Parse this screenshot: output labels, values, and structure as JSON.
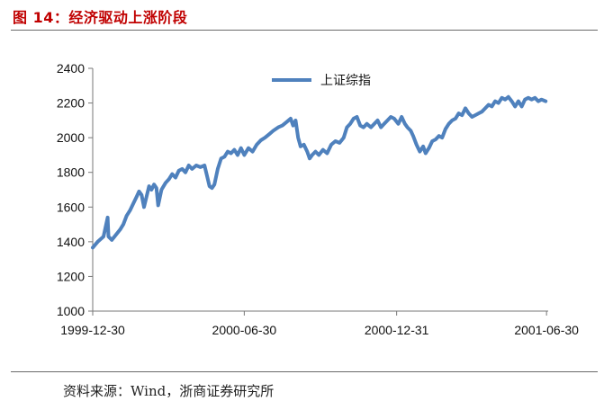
{
  "figure": {
    "title": "图 14：经济驱动上涨阶段",
    "source": "资料来源：Wind，浙商证券研究所"
  },
  "chart_data": {
    "type": "line",
    "title": "",
    "xlabel": "",
    "ylabel": "",
    "ylim": [
      1000,
      2400
    ],
    "yticks": [
      1000,
      1200,
      1400,
      1600,
      1800,
      2000,
      2200,
      2400
    ],
    "xlim": [
      "1999-12-30",
      "2001-07-02"
    ],
    "xticks": [
      "1999-12-30",
      "2000-06-30",
      "2000-12-31",
      "2001-06-30"
    ],
    "grid": false,
    "legend_position": "top-center",
    "series": [
      {
        "name": "上证综指",
        "color": "#4f81bd",
        "points": [
          [
            "1999-12-30",
            1366
          ],
          [
            "2000-01-05",
            1400
          ],
          [
            "2000-01-12",
            1430
          ],
          [
            "2000-01-17",
            1540
          ],
          [
            "2000-01-18",
            1430
          ],
          [
            "2000-01-22",
            1410
          ],
          [
            "2000-01-27",
            1440
          ],
          [
            "2000-02-01",
            1470
          ],
          [
            "2000-02-05",
            1500
          ],
          [
            "2000-02-09",
            1550
          ],
          [
            "2000-02-13",
            1580
          ],
          [
            "2000-02-17",
            1620
          ],
          [
            "2000-02-21",
            1660
          ],
          [
            "2000-02-24",
            1690
          ],
          [
            "2000-02-27",
            1670
          ],
          [
            "2000-03-01",
            1600
          ],
          [
            "2000-03-04",
            1660
          ],
          [
            "2000-03-07",
            1720
          ],
          [
            "2000-03-10",
            1700
          ],
          [
            "2000-03-13",
            1730
          ],
          [
            "2000-03-16",
            1710
          ],
          [
            "2000-03-18",
            1610
          ],
          [
            "2000-03-22",
            1700
          ],
          [
            "2000-03-27",
            1740
          ],
          [
            "2000-03-31",
            1760
          ],
          [
            "2000-04-04",
            1790
          ],
          [
            "2000-04-08",
            1770
          ],
          [
            "2000-04-12",
            1810
          ],
          [
            "2000-04-16",
            1820
          ],
          [
            "2000-04-20",
            1800
          ],
          [
            "2000-04-24",
            1840
          ],
          [
            "2000-04-28",
            1820
          ],
          [
            "2000-05-03",
            1840
          ],
          [
            "2000-05-08",
            1830
          ],
          [
            "2000-05-13",
            1840
          ],
          [
            "2000-05-16",
            1780
          ],
          [
            "2000-05-19",
            1720
          ],
          [
            "2000-05-22",
            1710
          ],
          [
            "2000-05-25",
            1730
          ],
          [
            "2000-05-29",
            1820
          ],
          [
            "2000-06-02",
            1880
          ],
          [
            "2000-06-06",
            1890
          ],
          [
            "2000-06-10",
            1920
          ],
          [
            "2000-06-14",
            1910
          ],
          [
            "2000-06-18",
            1930
          ],
          [
            "2000-06-22",
            1900
          ],
          [
            "2000-06-26",
            1940
          ],
          [
            "2000-06-30",
            1900
          ],
          [
            "2000-07-05",
            1940
          ],
          [
            "2000-07-10",
            1920
          ],
          [
            "2000-07-15",
            1960
          ],
          [
            "2000-07-20",
            1985
          ],
          [
            "2000-07-25",
            2000
          ],
          [
            "2000-07-30",
            2020
          ],
          [
            "2000-08-04",
            2040
          ],
          [
            "2000-08-10",
            2060
          ],
          [
            "2000-08-15",
            2070
          ],
          [
            "2000-08-20",
            2090
          ],
          [
            "2000-08-25",
            2110
          ],
          [
            "2000-08-28",
            2070
          ],
          [
            "2000-08-31",
            2100
          ],
          [
            "2000-09-03",
            2000
          ],
          [
            "2000-09-06",
            1950
          ],
          [
            "2000-09-10",
            1960
          ],
          [
            "2000-09-14",
            1920
          ],
          [
            "2000-09-17",
            1880
          ],
          [
            "2000-09-20",
            1900
          ],
          [
            "2000-09-24",
            1920
          ],
          [
            "2000-09-28",
            1900
          ],
          [
            "2000-10-03",
            1930
          ],
          [
            "2000-10-08",
            1910
          ],
          [
            "2000-10-13",
            1960
          ],
          [
            "2000-10-18",
            1980
          ],
          [
            "2000-10-23",
            1970
          ],
          [
            "2000-10-28",
            2000
          ],
          [
            "2000-11-01",
            2060
          ],
          [
            "2000-11-05",
            2080
          ],
          [
            "2000-11-09",
            2110
          ],
          [
            "2000-11-13",
            2120
          ],
          [
            "2000-11-17",
            2070
          ],
          [
            "2000-11-21",
            2060
          ],
          [
            "2000-11-25",
            2080
          ],
          [
            "2000-11-30",
            2060
          ],
          [
            "2000-12-04",
            2080
          ],
          [
            "2000-12-08",
            2100
          ],
          [
            "2000-12-12",
            2060
          ],
          [
            "2000-12-16",
            2080
          ],
          [
            "2000-12-20",
            2100
          ],
          [
            "2000-12-24",
            2120
          ],
          [
            "2000-12-28",
            2110
          ],
          [
            "2001-01-02",
            2080
          ],
          [
            "2001-01-06",
            2120
          ],
          [
            "2001-01-10",
            2080
          ],
          [
            "2001-01-13",
            2060
          ],
          [
            "2001-01-17",
            2040
          ],
          [
            "2001-01-20",
            2010
          ],
          [
            "2001-01-24",
            1960
          ],
          [
            "2001-01-28",
            1920
          ],
          [
            "2001-02-01",
            1950
          ],
          [
            "2001-02-04",
            1910
          ],
          [
            "2001-02-08",
            1940
          ],
          [
            "2001-02-12",
            1980
          ],
          [
            "2001-02-16",
            1990
          ],
          [
            "2001-02-20",
            2010
          ],
          [
            "2001-02-24",
            2000
          ],
          [
            "2001-02-28",
            2050
          ],
          [
            "2001-03-04",
            2080
          ],
          [
            "2001-03-08",
            2100
          ],
          [
            "2001-03-12",
            2110
          ],
          [
            "2001-03-16",
            2140
          ],
          [
            "2001-03-20",
            2130
          ],
          [
            "2001-03-24",
            2170
          ],
          [
            "2001-03-28",
            2140
          ],
          [
            "2001-04-01",
            2120
          ],
          [
            "2001-04-05",
            2130
          ],
          [
            "2001-04-09",
            2140
          ],
          [
            "2001-04-13",
            2150
          ],
          [
            "2001-04-17",
            2170
          ],
          [
            "2001-04-21",
            2190
          ],
          [
            "2001-04-25",
            2180
          ],
          [
            "2001-04-29",
            2210
          ],
          [
            "2001-05-03",
            2200
          ],
          [
            "2001-05-07",
            2230
          ],
          [
            "2001-05-11",
            2220
          ],
          [
            "2001-05-15",
            2235
          ],
          [
            "2001-05-19",
            2210
          ],
          [
            "2001-05-23",
            2180
          ],
          [
            "2001-05-27",
            2210
          ],
          [
            "2001-05-31",
            2180
          ],
          [
            "2001-06-04",
            2220
          ],
          [
            "2001-06-08",
            2230
          ],
          [
            "2001-06-12",
            2220
          ],
          [
            "2001-06-16",
            2230
          ],
          [
            "2001-06-20",
            2210
          ],
          [
            "2001-06-24",
            2220
          ],
          [
            "2001-06-29",
            2210
          ]
        ]
      }
    ]
  }
}
